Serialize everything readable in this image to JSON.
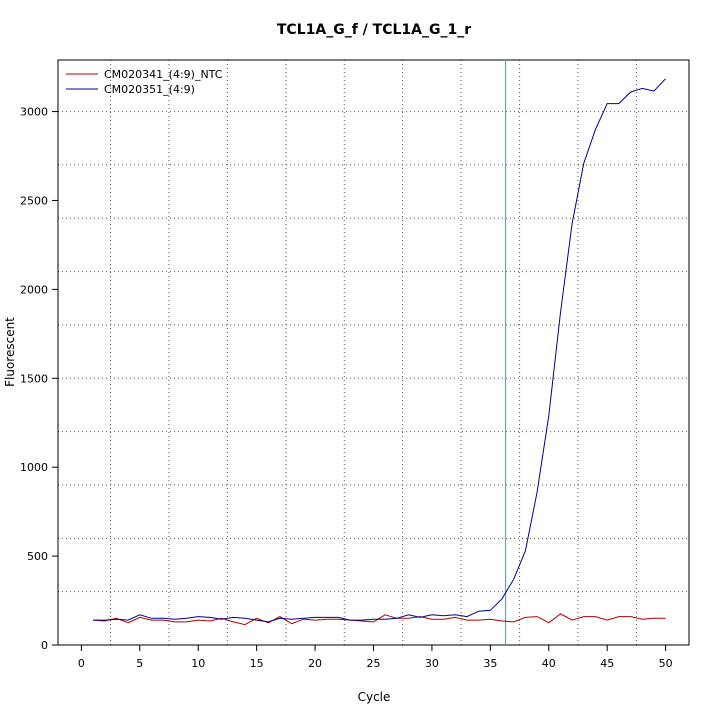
{
  "chart_data": {
    "type": "line",
    "title": "TCL1A_G_f / TCL1A_G_1_r",
    "xlabel": "Cycle",
    "ylabel": "Fluorescent",
    "xlim": [
      -2,
      52
    ],
    "ylim": [
      0,
      3290
    ],
    "x_ticks": [
      0,
      5,
      10,
      15,
      20,
      25,
      30,
      35,
      40,
      45,
      50
    ],
    "y_ticks": [
      0,
      500,
      1000,
      1500,
      2000,
      2500,
      3000
    ],
    "grid": true,
    "legend_position": "top-left",
    "threshold_cycle": 36.3,
    "threshold_color": "#00d0d8",
    "x": [
      1,
      2,
      3,
      4,
      5,
      6,
      7,
      8,
      9,
      10,
      11,
      12,
      13,
      14,
      15,
      16,
      17,
      18,
      19,
      20,
      21,
      22,
      23,
      24,
      25,
      26,
      27,
      28,
      29,
      30,
      31,
      32,
      33,
      34,
      35,
      36,
      37,
      38,
      39,
      40,
      41,
      42,
      43,
      44,
      45,
      46,
      47,
      48,
      49,
      50
    ],
    "series": [
      {
        "name": "CM020341_(4:9)_NTC",
        "color": "#b00000",
        "values": [
          140,
          135,
          150,
          125,
          155,
          140,
          140,
          130,
          130,
          140,
          135,
          150,
          130,
          115,
          150,
          125,
          160,
          120,
          145,
          140,
          145,
          145,
          140,
          135,
          130,
          170,
          150,
          150,
          160,
          145,
          145,
          155,
          140,
          140,
          145,
          135,
          130,
          155,
          160,
          125,
          175,
          140,
          160,
          160,
          140,
          160,
          160,
          145,
          150,
          150
        ]
      },
      {
        "name": "CM020351_(4:9)",
        "color": "#00008b",
        "values": [
          140,
          140,
          145,
          140,
          170,
          150,
          150,
          145,
          150,
          160,
          155,
          145,
          155,
          150,
          140,
          130,
          150,
          145,
          150,
          155,
          155,
          155,
          140,
          140,
          145,
          145,
          150,
          170,
          155,
          170,
          165,
          170,
          160,
          190,
          195,
          260,
          370,
          530,
          860,
          1290,
          1870,
          2370,
          2710,
          2900,
          3045,
          3045,
          3110,
          3130,
          3115,
          3185
        ]
      }
    ]
  }
}
